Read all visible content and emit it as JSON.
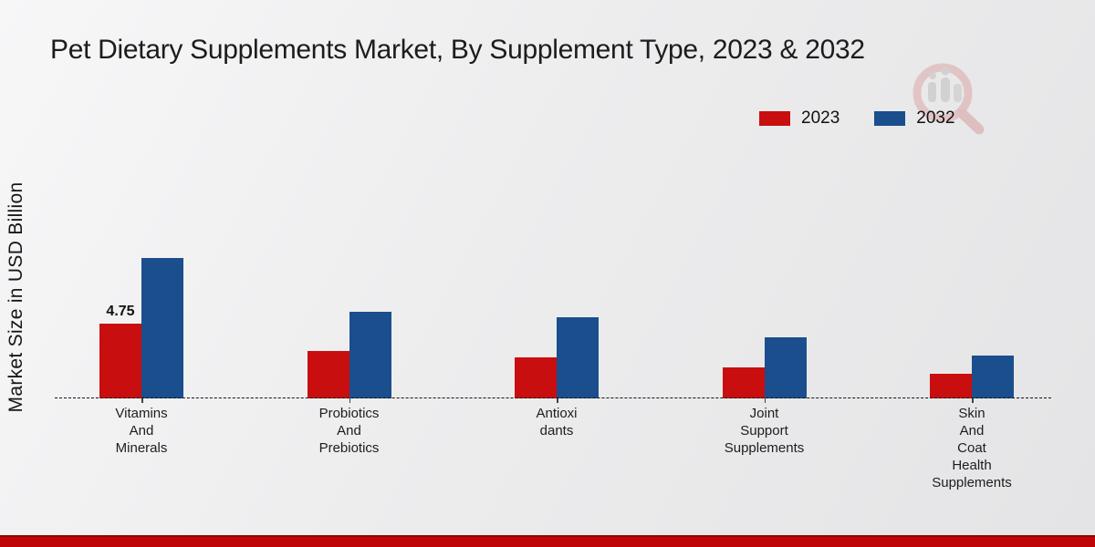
{
  "chart_data": {
    "type": "bar",
    "title": "Pet Dietary Supplements Market, By Supplement Type, 2023 & 2032",
    "ylabel": "Market Size in USD Billion",
    "xlabel": "",
    "categories": [
      [
        "Vitamins",
        "And",
        "Minerals"
      ],
      [
        "Probiotics",
        "And",
        "Prebiotics"
      ],
      [
        "Antioxi",
        "dants"
      ],
      [
        "Joint",
        "Support",
        "Supplements"
      ],
      [
        "Skin",
        "And",
        "Coat",
        "Health",
        "Supplements"
      ]
    ],
    "series": [
      {
        "name": "2023",
        "color": "#c90e10",
        "values": [
          4.75,
          3.0,
          2.6,
          2.0,
          1.55
        ]
      },
      {
        "name": "2032",
        "color": "#1b4e8c",
        "values": [
          8.95,
          5.55,
          5.15,
          3.9,
          2.75
        ]
      }
    ],
    "annotations": [
      {
        "text": "4.75",
        "category_index": 0,
        "series_index": 0
      }
    ],
    "ylim": [
      0,
      10
    ],
    "grid": false,
    "axis_style": "dashed-baseline",
    "legend_position": "top-right"
  },
  "branding": {
    "watermark": "magnifier-bars-logo",
    "bottom_bar_color": "#c00506",
    "bottom_bar_edge_color": "#8e0304",
    "background_color": "#ededee"
  }
}
